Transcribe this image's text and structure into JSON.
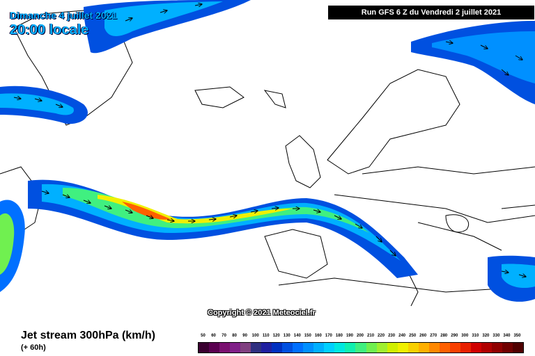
{
  "header": {
    "date": "Dimanche 4 juillet 2021",
    "time": "20:00 locale",
    "run": "Run GFS 6 Z du Vendredi 2 juillet 2021"
  },
  "copyright": "Copyright © 2021 Meteociel.fr",
  "legend": {
    "title": "Jet stream 300hPa (km/h)",
    "subtitle": "(+ 60h)",
    "values": [
      "50",
      "60",
      "70",
      "80",
      "90",
      "100",
      "110",
      "120",
      "130",
      "140",
      "150",
      "160",
      "170",
      "180",
      "190",
      "200",
      "210",
      "220",
      "230",
      "240",
      "250",
      "260",
      "270",
      "280",
      "290",
      "300",
      "310",
      "320",
      "330",
      "340",
      "350"
    ],
    "colors": [
      "#3a0030",
      "#5a0050",
      "#7a1070",
      "#802088",
      "#804080",
      "#303080",
      "#2020a0",
      "#0030c0",
      "#0050e0",
      "#0070ff",
      "#0090ff",
      "#00b0ff",
      "#00d0ff",
      "#00e8e0",
      "#10f0b0",
      "#40f080",
      "#70f050",
      "#a0f030",
      "#d0f000",
      "#f0f000",
      "#f8d000",
      "#ffb000",
      "#ff8800",
      "#ff6000",
      "#f84000",
      "#e82000",
      "#d00000",
      "#b00000",
      "#900000",
      "#700000",
      "#500000"
    ]
  }
}
